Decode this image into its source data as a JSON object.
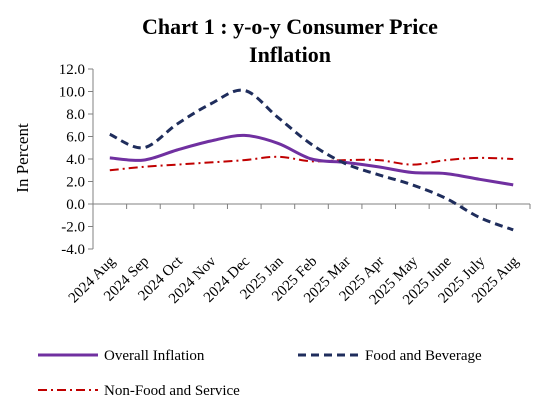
{
  "chart_data": {
    "type": "line",
    "title_line1": "Chart 1 : y-o-y Consumer Price",
    "title_line2": "Inflation",
    "ylabel": "In Percent",
    "ylim": [
      -4.0,
      12.0
    ],
    "ytick_step": 2.0,
    "yticks": [
      "12.0",
      "10.0",
      "8.0",
      "6.0",
      "4.0",
      "2.0",
      "0.0",
      "-2.0",
      "-4.0"
    ],
    "categories": [
      "2024 Aug",
      "2024 Sep",
      "2024 Oct",
      "2024 Nov",
      "2024 Dec",
      "2025 Jan",
      "2025 Feb",
      "2025 Mar",
      "2025 Apr",
      "2025 May",
      "2025 June",
      "2025 July",
      "2025 Aug"
    ],
    "series": [
      {
        "name": "Overall Inflation",
        "color": "#7030A0",
        "style": "solid",
        "values": [
          4.1,
          3.9,
          4.8,
          5.6,
          6.1,
          5.4,
          4.0,
          3.7,
          3.3,
          2.8,
          2.7,
          2.2,
          1.7
        ]
      },
      {
        "name": "Food and Beverage",
        "color": "#1F2D5C",
        "style": "dashed",
        "values": [
          6.2,
          5.0,
          7.1,
          8.9,
          10.1,
          7.7,
          5.3,
          3.6,
          2.6,
          1.7,
          0.5,
          -1.2,
          -2.3
        ]
      },
      {
        "name": "Non-Food and Service",
        "color": "#C00000",
        "style": "dashdot",
        "values": [
          3.0,
          3.3,
          3.5,
          3.7,
          3.9,
          4.2,
          3.8,
          3.9,
          3.9,
          3.5,
          3.9,
          4.1,
          4.0
        ]
      }
    ],
    "legend_position": "bottom",
    "grid": false
  }
}
